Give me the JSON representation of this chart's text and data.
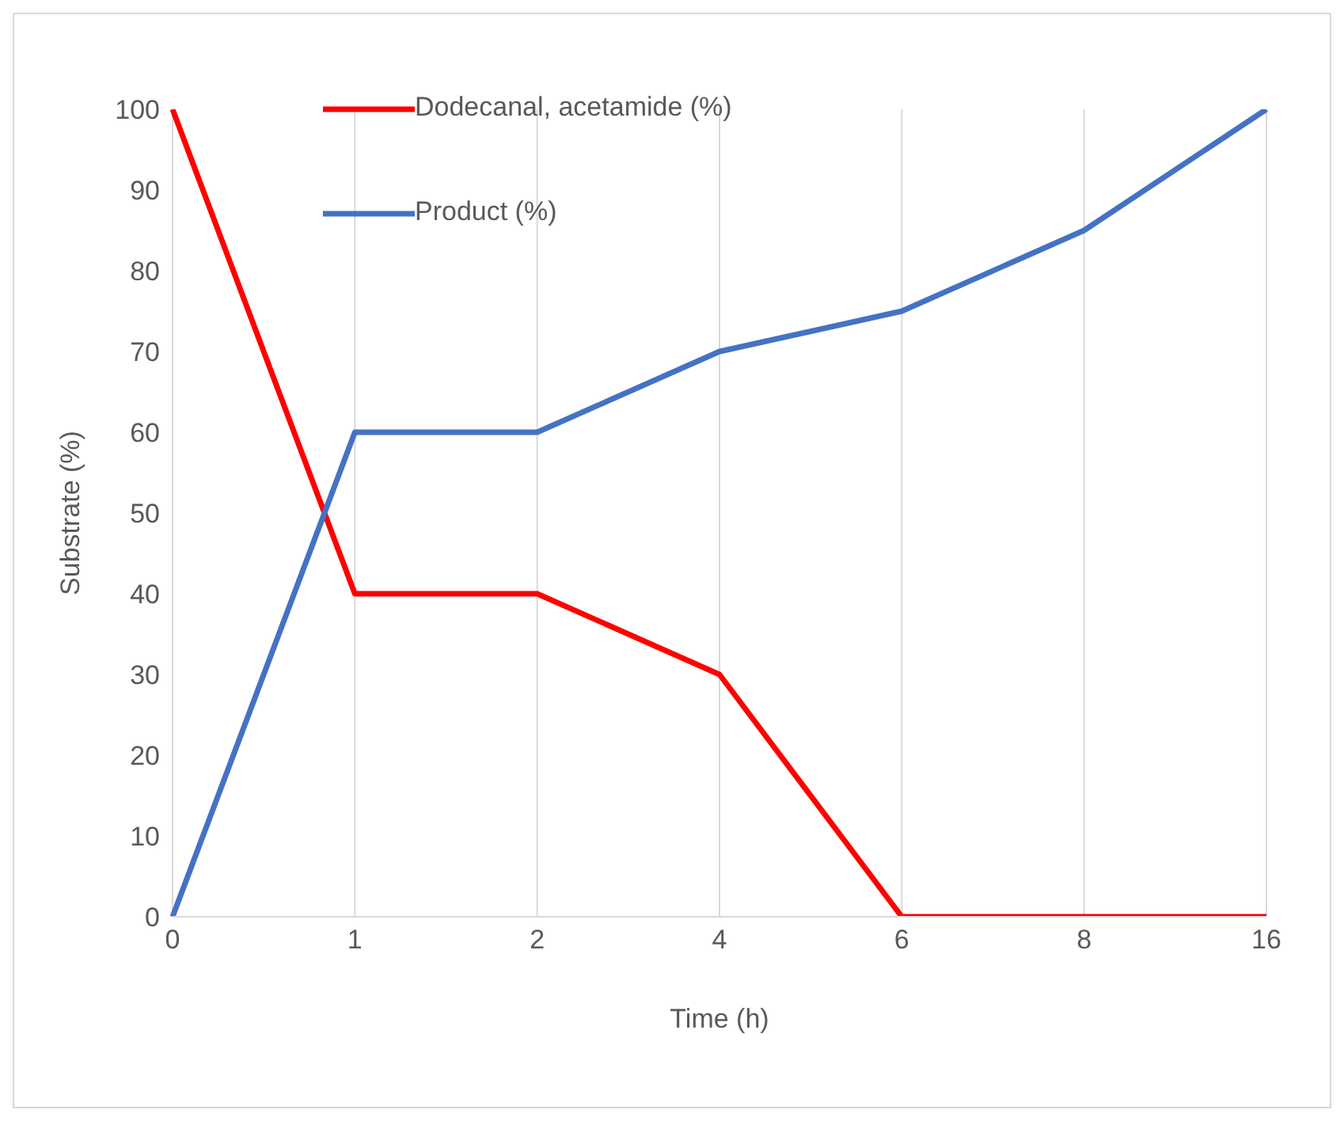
{
  "chart_data": {
    "type": "line",
    "xlabel": "Time (h)",
    "ylabel": "Substrate (%)",
    "categories": [
      "0",
      "1",
      "2",
      "4",
      "6",
      "8",
      "16"
    ],
    "series": [
      {
        "name": "Dodecanal, acetamide (%)",
        "color": "#ff0000",
        "values": [
          100,
          40,
          40,
          30,
          0,
          0,
          0
        ]
      },
      {
        "name": "Product (%)",
        "color": "#4472c4",
        "values": [
          0,
          60,
          60,
          70,
          75,
          85,
          100
        ]
      }
    ],
    "ylim": [
      0,
      100
    ],
    "yticks": [
      0,
      10,
      20,
      30,
      40,
      50,
      60,
      70,
      80,
      90,
      100
    ],
    "grid": "x",
    "legend": "top left",
    "marker": "none",
    "line_style": "solid"
  }
}
